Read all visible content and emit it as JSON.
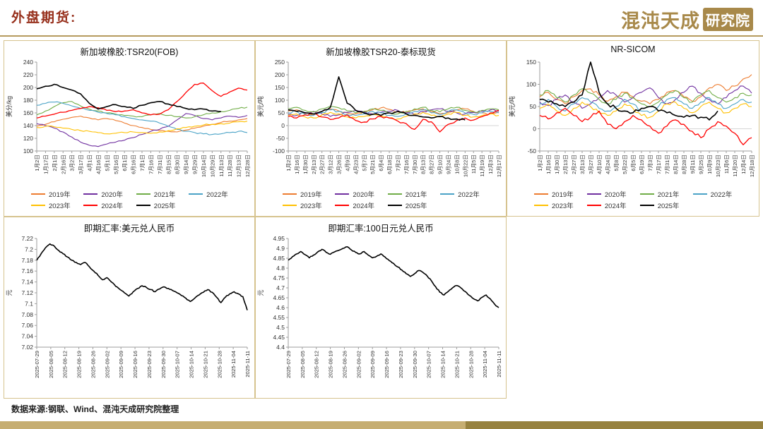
{
  "header": {
    "title": "外盘期货:",
    "logo_text": "混沌天成",
    "logo_badge": "研究院"
  },
  "footer": {
    "source": "数据来源:钢联、Wind、混沌天成研究院整理"
  },
  "palette": {
    "accent_gold": "#B59B5E",
    "title_red": "#97301C",
    "border_tan": "#D6C38F"
  },
  "chart_data": [
    {
      "type": "line",
      "title": "新加坡橡胶:TSR20(FOB)",
      "ylabel": "美分/kg",
      "ylim": [
        100,
        240
      ],
      "yticks": [
        "100",
        "120",
        "140",
        "160",
        "180",
        "200",
        "220",
        "240"
      ],
      "xlabels": [
        "1月2日",
        "1月17日",
        "2月1日",
        "2月16日",
        "3月2日",
        "3月17日",
        "4月1日",
        "4月16日",
        "5月1日",
        "5月16日",
        "6月1日",
        "6月16日",
        "7月1日",
        "7月16日",
        "7月31日",
        "8月15日",
        "8月30日",
        "9月14日",
        "9月29日",
        "10月14日",
        "10月29日",
        "11月13日",
        "11月28日",
        "12月13日",
        "12月28日"
      ],
      "legend": true,
      "noise": 2.2,
      "xlabel_space": 50,
      "series": [
        {
          "name": "2019年",
          "color": "#ED7D31",
          "values": [
            139,
            142,
            146,
            150,
            153,
            155,
            152,
            149,
            151,
            148,
            144,
            140,
            137,
            134,
            132,
            131,
            130,
            133,
            136,
            139,
            142,
            145,
            147,
            149,
            151
          ]
        },
        {
          "name": "2020年",
          "color": "#7030A0",
          "values": [
            143,
            140,
            136,
            130,
            122,
            114,
            109,
            107,
            111,
            114,
            117,
            121,
            126,
            131,
            134,
            139,
            149,
            159,
            156,
            151,
            149,
            152,
            155,
            153,
            156
          ]
        },
        {
          "name": "2021年",
          "color": "#70AD47",
          "values": [
            157,
            163,
            170,
            176,
            178,
            171,
            166,
            163,
            160,
            158,
            156,
            155,
            154,
            157,
            159,
            156,
            154,
            152,
            154,
            157,
            160,
            162,
            164,
            167,
            169
          ]
        },
        {
          "name": "2022年",
          "color": "#4BA3C7",
          "values": [
            172,
            175,
            177,
            175,
            171,
            167,
            164,
            161,
            159,
            157,
            154,
            151,
            149,
            147,
            144,
            139,
            134,
            131,
            129,
            127,
            126,
            127,
            129,
            131,
            129
          ]
        },
        {
          "name": "2023年",
          "color": "#FFC000",
          "values": [
            137,
            139,
            138,
            136,
            134,
            132,
            131,
            129,
            127,
            128,
            129,
            130,
            129,
            128,
            130,
            132,
            135,
            137,
            139,
            141,
            142,
            143,
            144,
            146,
            147
          ]
        },
        {
          "name": "2024年",
          "color": "#FF0000",
          "values": [
            152,
            155,
            158,
            161,
            164,
            167,
            170,
            168,
            164,
            162,
            163,
            165,
            160,
            157,
            158,
            165,
            178,
            192,
            205,
            207,
            195,
            186,
            193,
            199,
            196
          ]
        },
        {
          "name": "2025年",
          "color": "#000000",
          "values": [
            198,
            202,
            205,
            200,
            196,
            190,
            175,
            166,
            170,
            173,
            170,
            167,
            172,
            176,
            178,
            174,
            170,
            167,
            165,
            166,
            163,
            162,
            null,
            null,
            null
          ]
        }
      ]
    },
    {
      "type": "line",
      "title": "新加坡橡胶TSR20-泰标现货",
      "ylabel": "美元/吨",
      "ylim": [
        -100,
        250
      ],
      "yticks": [
        "-100",
        "-50",
        "0",
        "50",
        "100",
        "150",
        "200",
        "250"
      ],
      "xlabels": [
        "1月2日",
        "1月16日",
        "1月30日",
        "2月13日",
        "2月27日",
        "3月12日",
        "3月26日",
        "4月9日",
        "4月23日",
        "5月7日",
        "5月21日",
        "6月4日",
        "6月18日",
        "7月2日",
        "7月16日",
        "7月30日",
        "8月13日",
        "8月27日",
        "9月10日",
        "9月24日",
        "10月8日",
        "10月22日",
        "11月5日",
        "11月19日",
        "12月3日",
        "12月17日"
      ],
      "legend": true,
      "noise": 9,
      "xlabel_space": 50,
      "series": [
        {
          "name": "2019年",
          "color": "#ED7D31",
          "values": [
            58,
            62,
            48,
            44,
            56,
            66,
            58,
            50,
            46,
            56,
            62,
            70,
            64,
            54,
            50,
            62,
            66,
            54,
            46,
            52,
            62,
            66,
            56,
            50,
            46,
            52
          ]
        },
        {
          "name": "2020年",
          "color": "#7030A0",
          "values": [
            44,
            40,
            52,
            56,
            46,
            36,
            42,
            52,
            60,
            54,
            46,
            52,
            56,
            60,
            50,
            44,
            56,
            62,
            66,
            56,
            50,
            46,
            52,
            56,
            62,
            56
          ]
        },
        {
          "name": "2021年",
          "color": "#70AD47",
          "values": [
            66,
            72,
            60,
            54,
            66,
            76,
            70,
            58,
            50,
            56,
            66,
            60,
            50,
            46,
            56,
            66,
            72,
            60,
            54,
            66,
            72,
            60,
            54,
            60,
            66,
            62
          ]
        },
        {
          "name": "2022年",
          "color": "#4BA3C7",
          "values": [
            50,
            56,
            44,
            40,
            52,
            62,
            56,
            44,
            40,
            46,
            56,
            50,
            40,
            36,
            46,
            56,
            62,
            50,
            44,
            56,
            62,
            50,
            44,
            50,
            56,
            50
          ]
        },
        {
          "name": "2023年",
          "color": "#FFC000",
          "values": [
            40,
            46,
            34,
            30,
            42,
            52,
            46,
            34,
            30,
            36,
            46,
            40,
            30,
            26,
            36,
            46,
            52,
            40,
            34,
            46,
            52,
            40,
            34,
            40,
            46,
            40
          ]
        },
        {
          "name": "2024年",
          "color": "#FF0000",
          "values": [
            36,
            30,
            42,
            46,
            34,
            24,
            30,
            42,
            20,
            14,
            26,
            36,
            30,
            18,
            8,
            -15,
            25,
            15,
            -25,
            5,
            20,
            30,
            22,
            35,
            50,
            60
          ]
        },
        {
          "name": "2025年",
          "color": "#000000",
          "values": [
            62,
            56,
            50,
            46,
            56,
            72,
            192,
            88,
            60,
            50,
            44,
            40,
            50,
            56,
            46,
            40,
            34,
            30,
            36,
            30,
            26,
            22,
            null,
            null,
            null,
            null
          ]
        }
      ]
    },
    {
      "type": "line",
      "title": "NR-SICOM",
      "ylabel": "美元/吨",
      "ylim": [
        -50,
        150
      ],
      "yticks": [
        "-50",
        "0",
        "50",
        "100",
        "150"
      ],
      "xlabels": [
        "1月2日",
        "1月16日",
        "1月30日",
        "2月13日",
        "2月27日",
        "3月13日",
        "3月27日",
        "4月10日",
        "4月24日",
        "5月8日",
        "5月22日",
        "6月5日",
        "6月19日",
        "7月3日",
        "7月17日",
        "7月31日",
        "8月14日",
        "8月28日",
        "9月11日",
        "9月25日",
        "10月9日",
        "10月23日",
        "11月6日",
        "11月20日",
        "12月4日",
        "12月18日"
      ],
      "legend": true,
      "noise": 8,
      "xlabel_space": 50,
      "series": [
        {
          "name": "2019年",
          "color": "#ED7D31",
          "values": [
            72,
            82,
            66,
            56,
            72,
            86,
            90,
            76,
            62,
            72,
            82,
            72,
            62,
            56,
            66,
            82,
            86,
            72,
            62,
            72,
            92,
            100,
            86,
            96,
            112,
            122
          ]
        },
        {
          "name": "2020年",
          "color": "#7030A0",
          "values": [
            60,
            52,
            66,
            76,
            60,
            46,
            56,
            70,
            86,
            76,
            60,
            70,
            82,
            92,
            70,
            56,
            66,
            82,
            96,
            80,
            66,
            56,
            70,
            86,
            96,
            80
          ]
        },
        {
          "name": "2021年",
          "color": "#70AD47",
          "values": [
            76,
            86,
            70,
            60,
            76,
            90,
            80,
            66,
            56,
            66,
            80,
            70,
            56,
            50,
            60,
            76,
            86,
            70,
            60,
            76,
            86,
            70,
            60,
            70,
            80,
            76
          ]
        },
        {
          "name": "2022年",
          "color": "#4BA3C7",
          "values": [
            56,
            66,
            50,
            40,
            56,
            70,
            60,
            46,
            40,
            50,
            66,
            56,
            40,
            36,
            50,
            66,
            70,
            56,
            46,
            60,
            70,
            56,
            46,
            56,
            66,
            60
          ]
        },
        {
          "name": "2023年",
          "color": "#FFC000",
          "values": [
            46,
            56,
            40,
            30,
            46,
            60,
            50,
            36,
            30,
            40,
            56,
            46,
            30,
            26,
            40,
            56,
            60,
            46,
            36,
            50,
            60,
            46,
            36,
            46,
            56,
            50
          ]
        },
        {
          "name": "2024年",
          "color": "#FF0000",
          "values": [
            30,
            22,
            36,
            46,
            30,
            16,
            26,
            40,
            10,
            0,
            16,
            30,
            20,
            6,
            -10,
            6,
            20,
            10,
            -6,
            -20,
            0,
            16,
            6,
            -10,
            -36,
            -20
          ]
        },
        {
          "name": "2025年",
          "color": "#000000",
          "values": [
            66,
            60,
            56,
            50,
            60,
            76,
            150,
            82,
            56,
            46,
            40,
            36,
            46,
            50,
            40,
            36,
            30,
            26,
            30,
            26,
            20,
            40,
            null,
            null,
            null,
            null
          ]
        }
      ]
    },
    {
      "type": "line",
      "title": "即期汇率:美元兑人民币",
      "ylabel": "元",
      "ylim": [
        7.02,
        7.22
      ],
      "yticks": [
        "7.02",
        "7.04",
        "7.06",
        "7.08",
        "7.1",
        "7.12",
        "7.14",
        "7.16",
        "7.18",
        "7.2",
        "7.22"
      ],
      "xlabels": [
        "2025-07-29",
        "2025-08-05",
        "2025-08-12",
        "2025-08-19",
        "2025-08-26",
        "2025-09-02",
        "2025-09-09",
        "2025-09-16",
        "2025-09-23",
        "2025-09-30",
        "2025-10-07",
        "2025-10-14",
        "2025-10-21",
        "2025-10-28",
        "2025-11-04",
        "2025-11-11"
      ],
      "legend": false,
      "noise": 0.0022,
      "xlabel_space": 66,
      "series": [
        {
          "name": "即期汇率:美元兑人民币",
          "color": "#000000",
          "values": [
            7.18,
            7.192,
            7.203,
            7.21,
            7.206,
            7.198,
            7.192,
            7.186,
            7.18,
            7.176,
            7.172,
            7.176,
            7.168,
            7.16,
            7.152,
            7.144,
            7.148,
            7.14,
            7.132,
            7.126,
            7.12,
            7.114,
            7.122,
            7.128,
            7.133,
            7.13,
            7.126,
            7.122,
            7.127,
            7.131,
            7.128,
            7.124,
            7.12,
            7.115,
            7.11,
            7.104,
            7.11,
            7.116,
            7.121,
            7.126,
            7.121,
            7.112,
            7.102,
            7.112,
            7.118,
            7.122,
            7.118,
            7.113,
            7.088
          ]
        }
      ]
    },
    {
      "type": "line",
      "title": "即期汇率:100日元兑人民币",
      "ylabel": "元",
      "ylim": [
        4.4,
        4.95
      ],
      "yticks": [
        "4.4",
        "4.45",
        "4.5",
        "4.55",
        "4.6",
        "4.65",
        "4.7",
        "4.75",
        "4.8",
        "4.85",
        "4.9",
        "4.95"
      ],
      "xlabels": [
        "2025-07-29",
        "2025-08-05",
        "2025-08-12",
        "2025-08-19",
        "2025-08-26",
        "2025-09-02",
        "2025-09-09",
        "2025-09-16",
        "2025-09-23",
        "2025-09-30",
        "2025-10-07",
        "2025-10-14",
        "2025-10-21",
        "2025-10-28",
        "2025-11-04",
        "2025-11-11"
      ],
      "legend": false,
      "noise": 0.006,
      "xlabel_space": 66,
      "series": [
        {
          "name": "即期汇率:100日元兑人民币",
          "color": "#000000",
          "values": [
            4.84,
            4.858,
            4.872,
            4.884,
            4.868,
            4.852,
            4.866,
            4.882,
            4.895,
            4.88,
            4.87,
            4.882,
            4.89,
            4.9,
            4.908,
            4.892,
            4.88,
            4.872,
            4.884,
            4.866,
            4.852,
            4.86,
            4.872,
            4.856,
            4.838,
            4.824,
            4.806,
            4.79,
            4.772,
            4.758,
            4.772,
            4.788,
            4.778,
            4.76,
            4.736,
            4.706,
            4.678,
            4.664,
            4.682,
            4.7,
            4.712,
            4.7,
            4.682,
            4.662,
            4.645,
            4.634,
            4.652,
            4.664,
            4.644,
            4.618,
            4.6
          ]
        }
      ]
    }
  ]
}
